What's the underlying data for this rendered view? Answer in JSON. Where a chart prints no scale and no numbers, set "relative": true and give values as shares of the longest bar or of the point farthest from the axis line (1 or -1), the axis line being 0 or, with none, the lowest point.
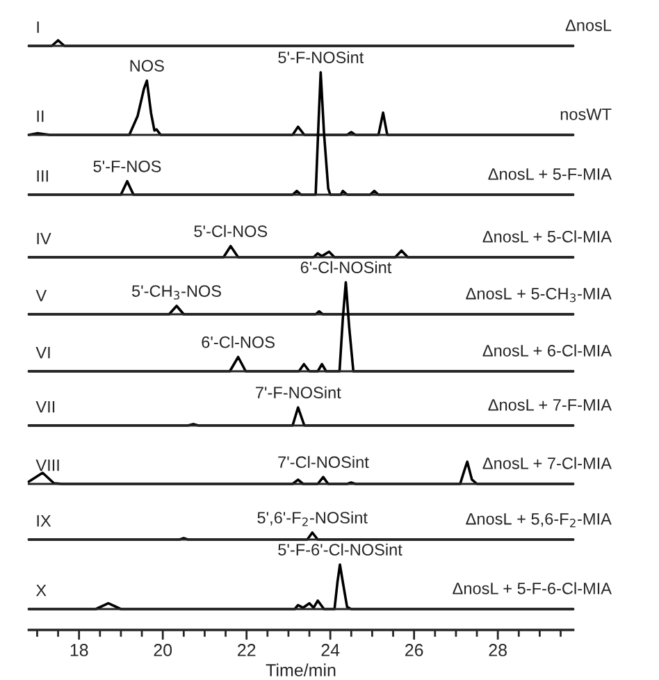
{
  "chart_data": [
    {
      "type": "line",
      "relative": true,
      "xlim": [
        16.8,
        29.8
      ],
      "tick_labels": false,
      "annotations": [
        "I"
      ],
      "series": [
        {
          "name": "ΔnosL",
          "color": "#000000",
          "x": [
            16.8,
            17.35,
            17.5,
            17.65,
            29.8
          ],
          "values": [
            0,
            0,
            1,
            0,
            0
          ]
        }
      ]
    },
    {
      "type": "line",
      "relative": true,
      "xlim": [
        16.8,
        29.8
      ],
      "tick_labels": false,
      "annotations": [
        "II",
        {
          "text": "NOS",
          "x": 19.62,
          "y": 1
        }
      ],
      "series": [
        {
          "name": "nosWT",
          "color": "#000000",
          "x": [
            16.8,
            17.0,
            17.3,
            19.2,
            19.4,
            19.55,
            19.62,
            19.72,
            19.8,
            19.85,
            19.95,
            23.1,
            23.23,
            23.38,
            24.4,
            24.5,
            24.6,
            25.15,
            25.26,
            25.36,
            29.8
          ],
          "values": [
            0,
            0.03,
            0,
            0,
            0.35,
            0.85,
            1,
            0.4,
            0.08,
            0.1,
            0,
            0,
            0.15,
            0,
            0,
            0.05,
            0,
            0,
            0.41,
            0,
            0
          ]
        }
      ]
    },
    {
      "type": "line",
      "relative": true,
      "xlim": [
        16.8,
        29.8
      ],
      "tick_labels": false,
      "annotations": [
        "III",
        {
          "text": "5'-F-NOS",
          "x": 19.15,
          "y": 0.11
        },
        {
          "text": "5'-F-NOSint",
          "x": 23.77,
          "y": 1
        }
      ],
      "series": [
        {
          "name": "ΔnosL + 5-F-MIA",
          "color": "#000000",
          "x": [
            16.8,
            19.0,
            19.15,
            19.3,
            23.1,
            23.2,
            23.3,
            23.65,
            23.72,
            23.77,
            23.85,
            23.95,
            24.0,
            24.25,
            24.3,
            24.4,
            24.95,
            25.05,
            25.15,
            29.8
          ],
          "values": [
            0,
            0,
            0.11,
            0,
            0,
            0.03,
            0,
            0,
            0.6,
            1,
            0.5,
            0.05,
            0,
            0,
            0.03,
            0,
            0,
            0.03,
            0,
            0
          ]
        }
      ]
    },
    {
      "type": "line",
      "relative": true,
      "xlim": [
        16.8,
        29.8
      ],
      "tick_labels": false,
      "annotations": [
        "IV",
        {
          "text": "5'-Cl-NOS",
          "x": 21.62,
          "y": 1
        }
      ],
      "series": [
        {
          "name": "ΔnosL + 5-Cl-MIA",
          "color": "#000000",
          "x": [
            16.8,
            21.45,
            21.62,
            21.8,
            23.6,
            23.7,
            23.8,
            23.97,
            24.1,
            25.55,
            25.7,
            25.85,
            29.8
          ],
          "values": [
            0,
            0,
            1,
            0,
            0,
            0.35,
            0.1,
            0.5,
            0,
            0,
            0.6,
            0,
            0
          ]
        }
      ]
    },
    {
      "type": "line",
      "relative": true,
      "xlim": [
        16.8,
        29.8
      ],
      "tick_labels": false,
      "annotations": [
        "V",
        {
          "text": "5'-CH$_{3}$-NOS",
          "x": 20.33,
          "y": 1
        }
      ],
      "series": [
        {
          "name": "ΔnosL + 5-CH$_{3}$-MIA",
          "color": "#000000",
          "x": [
            16.8,
            20.15,
            20.33,
            20.5,
            23.65,
            23.73,
            23.82,
            29.8
          ],
          "values": [
            0,
            0,
            1,
            0,
            0,
            0.35,
            0,
            0
          ]
        }
      ]
    },
    {
      "type": "line",
      "relative": true,
      "xlim": [
        16.8,
        29.8
      ],
      "tick_labels": false,
      "annotations": [
        "VI",
        {
          "text": "6'-Cl-NOS",
          "x": 21.8,
          "y": 0.16
        },
        {
          "text": "6'-Cl-NOSint",
          "x": 24.37,
          "y": 1
        }
      ],
      "series": [
        {
          "name": "ΔnosL + 6-Cl-MIA",
          "color": "#000000",
          "x": [
            16.8,
            21.6,
            21.8,
            21.98,
            23.25,
            23.37,
            23.5,
            23.7,
            23.8,
            23.9,
            24.22,
            24.3,
            24.37,
            24.45,
            24.55,
            29.8
          ],
          "values": [
            0,
            0,
            0.16,
            0,
            0,
            0.08,
            0,
            0,
            0.08,
            0,
            0,
            0.6,
            1,
            0.5,
            0,
            0
          ]
        }
      ]
    },
    {
      "type": "line",
      "relative": true,
      "xlim": [
        16.8,
        29.8
      ],
      "tick_labels": false,
      "annotations": [
        "VII",
        {
          "text": "7'-F-NOSint",
          "x": 23.23,
          "y": 1
        }
      ],
      "series": [
        {
          "name": "ΔnosL + 7-F-MIA",
          "color": "#000000",
          "x": [
            16.8,
            20.6,
            20.73,
            20.85,
            23.1,
            23.23,
            23.38,
            29.8
          ],
          "values": [
            0,
            0,
            0.08,
            0,
            0,
            1,
            0,
            0
          ]
        }
      ]
    },
    {
      "type": "line",
      "relative": true,
      "xlim": [
        16.8,
        29.8
      ],
      "tick_labels": false,
      "annotations": [
        "VIII",
        {
          "text": "7'-Cl-NOSint",
          "x": 23.83,
          "y": 0.31
        }
      ],
      "series": [
        {
          "name": "ΔnosL + 7-Cl-MIA",
          "color": "#000000",
          "x": [
            16.8,
            17.13,
            17.4,
            17.6,
            23.1,
            23.23,
            23.35,
            23.7,
            23.83,
            23.95,
            24.4,
            24.5,
            24.6,
            27.1,
            27.2,
            27.27,
            27.38,
            27.5,
            29.8
          ],
          "values": [
            0.1,
            0.5,
            0.03,
            0,
            0,
            0.19,
            0,
            0,
            0.31,
            0,
            0,
            0.06,
            0,
            0,
            0.6,
            1,
            0.2,
            0,
            0
          ]
        }
      ]
    },
    {
      "type": "line",
      "relative": true,
      "xlim": [
        16.8,
        29.8
      ],
      "tick_labels": false,
      "annotations": [
        "IX",
        {
          "text": "5',6'-F$_{2}$-NOSint",
          "x": 23.57,
          "y": 1
        }
      ],
      "series": [
        {
          "name": "ΔnosL + 5,6-F$_{2}$-MIA",
          "color": "#000000",
          "x": [
            16.8,
            20.4,
            20.5,
            20.6,
            23.45,
            23.57,
            23.7,
            29.8
          ],
          "values": [
            0,
            0,
            0.2,
            0,
            0,
            1,
            0,
            0
          ]
        }
      ]
    },
    {
      "type": "line",
      "relative": true,
      "xlim": [
        16.8,
        29.8
      ],
      "tick_labels": "x",
      "xlabel": "Time/min",
      "annotations": [
        "X",
        {
          "text": "5'-F-6'-Cl-NOSint",
          "x": 24.23,
          "y": 1
        }
      ],
      "xticks": [
        18,
        20,
        22,
        24,
        26,
        28
      ],
      "series": [
        {
          "name": "ΔnosL + 5-F-6-Cl-MIA",
          "color": "#000000",
          "x": [
            16.8,
            18.4,
            18.7,
            19.0,
            23.15,
            23.23,
            23.35,
            23.5,
            23.6,
            23.7,
            23.85,
            24.1,
            24.17,
            24.23,
            24.3,
            24.4,
            24.5,
            29.8
          ],
          "values": [
            0,
            0,
            0.13,
            0,
            0,
            0.09,
            0.03,
            0.13,
            0.03,
            0.19,
            0,
            0,
            0.6,
            1,
            0.6,
            0.05,
            0,
            0
          ]
        }
      ]
    }
  ]
}
